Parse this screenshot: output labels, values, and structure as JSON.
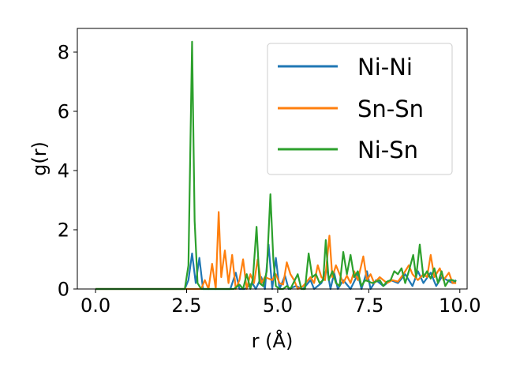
{
  "chart_data": {
    "type": "line",
    "xlabel": "r (Å)",
    "ylabel": "g(r)",
    "xlim": [
      -0.5,
      10.2
    ],
    "ylim": [
      0,
      8.8
    ],
    "grid": false,
    "legend_position": "top-right",
    "x_ticks": [
      0.0,
      2.5,
      5.0,
      7.5,
      10.0
    ],
    "x_tick_labels": [
      "0.0",
      "2.5",
      "5.0",
      "7.5",
      "10.0"
    ],
    "y_ticks": [
      0,
      2,
      4,
      6,
      8
    ],
    "y_tick_labels": [
      "0",
      "2",
      "4",
      "6",
      "8"
    ],
    "series": [
      {
        "name": "Ni-Ni",
        "color": "#1f77b4",
        "points": [
          [
            0,
            0
          ],
          [
            2.45,
            0
          ],
          [
            2.55,
            0.3
          ],
          [
            2.65,
            1.2
          ],
          [
            2.75,
            0.2
          ],
          [
            2.85,
            1.05
          ],
          [
            2.95,
            0
          ],
          [
            3.1,
            0
          ],
          [
            3.3,
            0
          ],
          [
            3.5,
            0
          ],
          [
            3.7,
            0
          ],
          [
            3.85,
            0.55
          ],
          [
            3.95,
            0
          ],
          [
            4.1,
            0
          ],
          [
            4.3,
            0.2
          ],
          [
            4.4,
            0
          ],
          [
            4.55,
            0.4
          ],
          [
            4.65,
            0
          ],
          [
            4.75,
            1.5
          ],
          [
            4.85,
            0
          ],
          [
            4.95,
            1.05
          ],
          [
            5.05,
            0
          ],
          [
            5.2,
            0.45
          ],
          [
            5.3,
            0
          ],
          [
            5.5,
            0.1
          ],
          [
            5.7,
            0
          ],
          [
            5.9,
            0.3
          ],
          [
            6.0,
            0
          ],
          [
            6.2,
            0.2
          ],
          [
            6.35,
            0.7
          ],
          [
            6.45,
            0
          ],
          [
            6.55,
            0.55
          ],
          [
            6.65,
            0
          ],
          [
            6.8,
            0.3
          ],
          [
            7.0,
            0
          ],
          [
            7.2,
            0.5
          ],
          [
            7.3,
            0
          ],
          [
            7.45,
            0.6
          ],
          [
            7.55,
            0
          ],
          [
            7.7,
            0.3
          ],
          [
            7.9,
            0.1
          ],
          [
            8.1,
            0.3
          ],
          [
            8.3,
            0.2
          ],
          [
            8.5,
            0.5
          ],
          [
            8.7,
            0.1
          ],
          [
            8.85,
            0.6
          ],
          [
            9.0,
            0.2
          ],
          [
            9.2,
            0.55
          ],
          [
            9.35,
            0.1
          ],
          [
            9.5,
            0.4
          ],
          [
            9.65,
            0.3
          ],
          [
            9.8,
            0.2
          ],
          [
            9.9,
            0.3
          ]
        ]
      },
      {
        "name": "Sn-Sn",
        "color": "#ff7f0e",
        "points": [
          [
            0,
            0
          ],
          [
            2.9,
            0
          ],
          [
            3.0,
            0.3
          ],
          [
            3.1,
            0
          ],
          [
            3.2,
            0.85
          ],
          [
            3.3,
            0
          ],
          [
            3.38,
            2.6
          ],
          [
            3.45,
            0.4
          ],
          [
            3.55,
            1.3
          ],
          [
            3.65,
            0.2
          ],
          [
            3.75,
            1.15
          ],
          [
            3.85,
            0
          ],
          [
            3.95,
            0.3
          ],
          [
            4.05,
            1.0
          ],
          [
            4.15,
            0
          ],
          [
            4.25,
            0.5
          ],
          [
            4.35,
            0.2
          ],
          [
            4.45,
            1.0
          ],
          [
            4.55,
            0.2
          ],
          [
            4.65,
            0.4
          ],
          [
            4.75,
            0.35
          ],
          [
            4.85,
            0.3
          ],
          [
            4.95,
            0.5
          ],
          [
            5.05,
            0.2
          ],
          [
            5.15,
            0.15
          ],
          [
            5.25,
            0.9
          ],
          [
            5.35,
            0.5
          ],
          [
            5.45,
            0.3
          ],
          [
            5.55,
            0
          ],
          [
            5.7,
            0.1
          ],
          [
            5.9,
            0.4
          ],
          [
            6.0,
            0.2
          ],
          [
            6.1,
            0.8
          ],
          [
            6.2,
            0.4
          ],
          [
            6.3,
            0.3
          ],
          [
            6.42,
            1.8
          ],
          [
            6.5,
            0.4
          ],
          [
            6.6,
            0.8
          ],
          [
            6.7,
            0.5
          ],
          [
            6.8,
            0.2
          ],
          [
            6.9,
            0.45
          ],
          [
            7.0,
            0.2
          ],
          [
            7.1,
            0.6
          ],
          [
            7.2,
            0.3
          ],
          [
            7.35,
            1.1
          ],
          [
            7.45,
            0.3
          ],
          [
            7.55,
            0.5
          ],
          [
            7.65,
            0.2
          ],
          [
            7.8,
            0.4
          ],
          [
            7.9,
            0.3
          ],
          [
            8.0,
            0.2
          ],
          [
            8.15,
            0.3
          ],
          [
            8.3,
            0.25
          ],
          [
            8.45,
            0.5
          ],
          [
            8.6,
            0.8
          ],
          [
            8.7,
            0.5
          ],
          [
            8.85,
            0.3
          ],
          [
            9.0,
            0.5
          ],
          [
            9.1,
            0.4
          ],
          [
            9.2,
            1.15
          ],
          [
            9.3,
            0.4
          ],
          [
            9.45,
            0.7
          ],
          [
            9.55,
            0.3
          ],
          [
            9.7,
            0.55
          ],
          [
            9.8,
            0.2
          ],
          [
            9.9,
            0.2
          ]
        ]
      },
      {
        "name": "Ni-Sn",
        "color": "#2ca02c",
        "points": [
          [
            0,
            0
          ],
          [
            2.45,
            0
          ],
          [
            2.55,
            0.8
          ],
          [
            2.65,
            8.35
          ],
          [
            2.72,
            2.3
          ],
          [
            2.8,
            0.2
          ],
          [
            2.9,
            0
          ],
          [
            3.0,
            0
          ],
          [
            3.2,
            0
          ],
          [
            3.4,
            0
          ],
          [
            3.6,
            0
          ],
          [
            3.8,
            0
          ],
          [
            3.95,
            0.15
          ],
          [
            4.05,
            0
          ],
          [
            4.15,
            0.5
          ],
          [
            4.25,
            0
          ],
          [
            4.32,
            0.35
          ],
          [
            4.42,
            2.1
          ],
          [
            4.5,
            0.2
          ],
          [
            4.6,
            0.1
          ],
          [
            4.7,
            0.6
          ],
          [
            4.8,
            3.2
          ],
          [
            4.88,
            1.0
          ],
          [
            4.95,
            0.1
          ],
          [
            5.05,
            0
          ],
          [
            5.15,
            0
          ],
          [
            5.25,
            0.1
          ],
          [
            5.35,
            0
          ],
          [
            5.55,
            0.5
          ],
          [
            5.65,
            0
          ],
          [
            5.75,
            0
          ],
          [
            5.85,
            1.2
          ],
          [
            5.95,
            0.4
          ],
          [
            6.05,
            0.5
          ],
          [
            6.15,
            0.2
          ],
          [
            6.25,
            0.3
          ],
          [
            6.32,
            1.65
          ],
          [
            6.4,
            0.3
          ],
          [
            6.5,
            0.6
          ],
          [
            6.6,
            0.2
          ],
          [
            6.7,
            0.1
          ],
          [
            6.8,
            1.25
          ],
          [
            6.9,
            0.5
          ],
          [
            7.0,
            1.15
          ],
          [
            7.1,
            0.4
          ],
          [
            7.2,
            0.6
          ],
          [
            7.3,
            0.1
          ],
          [
            7.4,
            0.3
          ],
          [
            7.5,
            0.25
          ],
          [
            7.6,
            0.2
          ],
          [
            7.7,
            0.25
          ],
          [
            7.8,
            0.3
          ],
          [
            7.9,
            0.1
          ],
          [
            8.0,
            0.25
          ],
          [
            8.1,
            0.3
          ],
          [
            8.2,
            0.6
          ],
          [
            8.3,
            0.5
          ],
          [
            8.4,
            0.7
          ],
          [
            8.5,
            0.2
          ],
          [
            8.6,
            0.6
          ],
          [
            8.72,
            1.15
          ],
          [
            8.8,
            0.4
          ],
          [
            8.9,
            1.5
          ],
          [
            9.0,
            0.4
          ],
          [
            9.1,
            0.6
          ],
          [
            9.2,
            0.35
          ],
          [
            9.3,
            0.7
          ],
          [
            9.4,
            0.2
          ],
          [
            9.5,
            0.6
          ],
          [
            9.6,
            0.1
          ],
          [
            9.7,
            0.3
          ],
          [
            9.8,
            0.3
          ],
          [
            9.9,
            0.25
          ]
        ]
      }
    ]
  }
}
